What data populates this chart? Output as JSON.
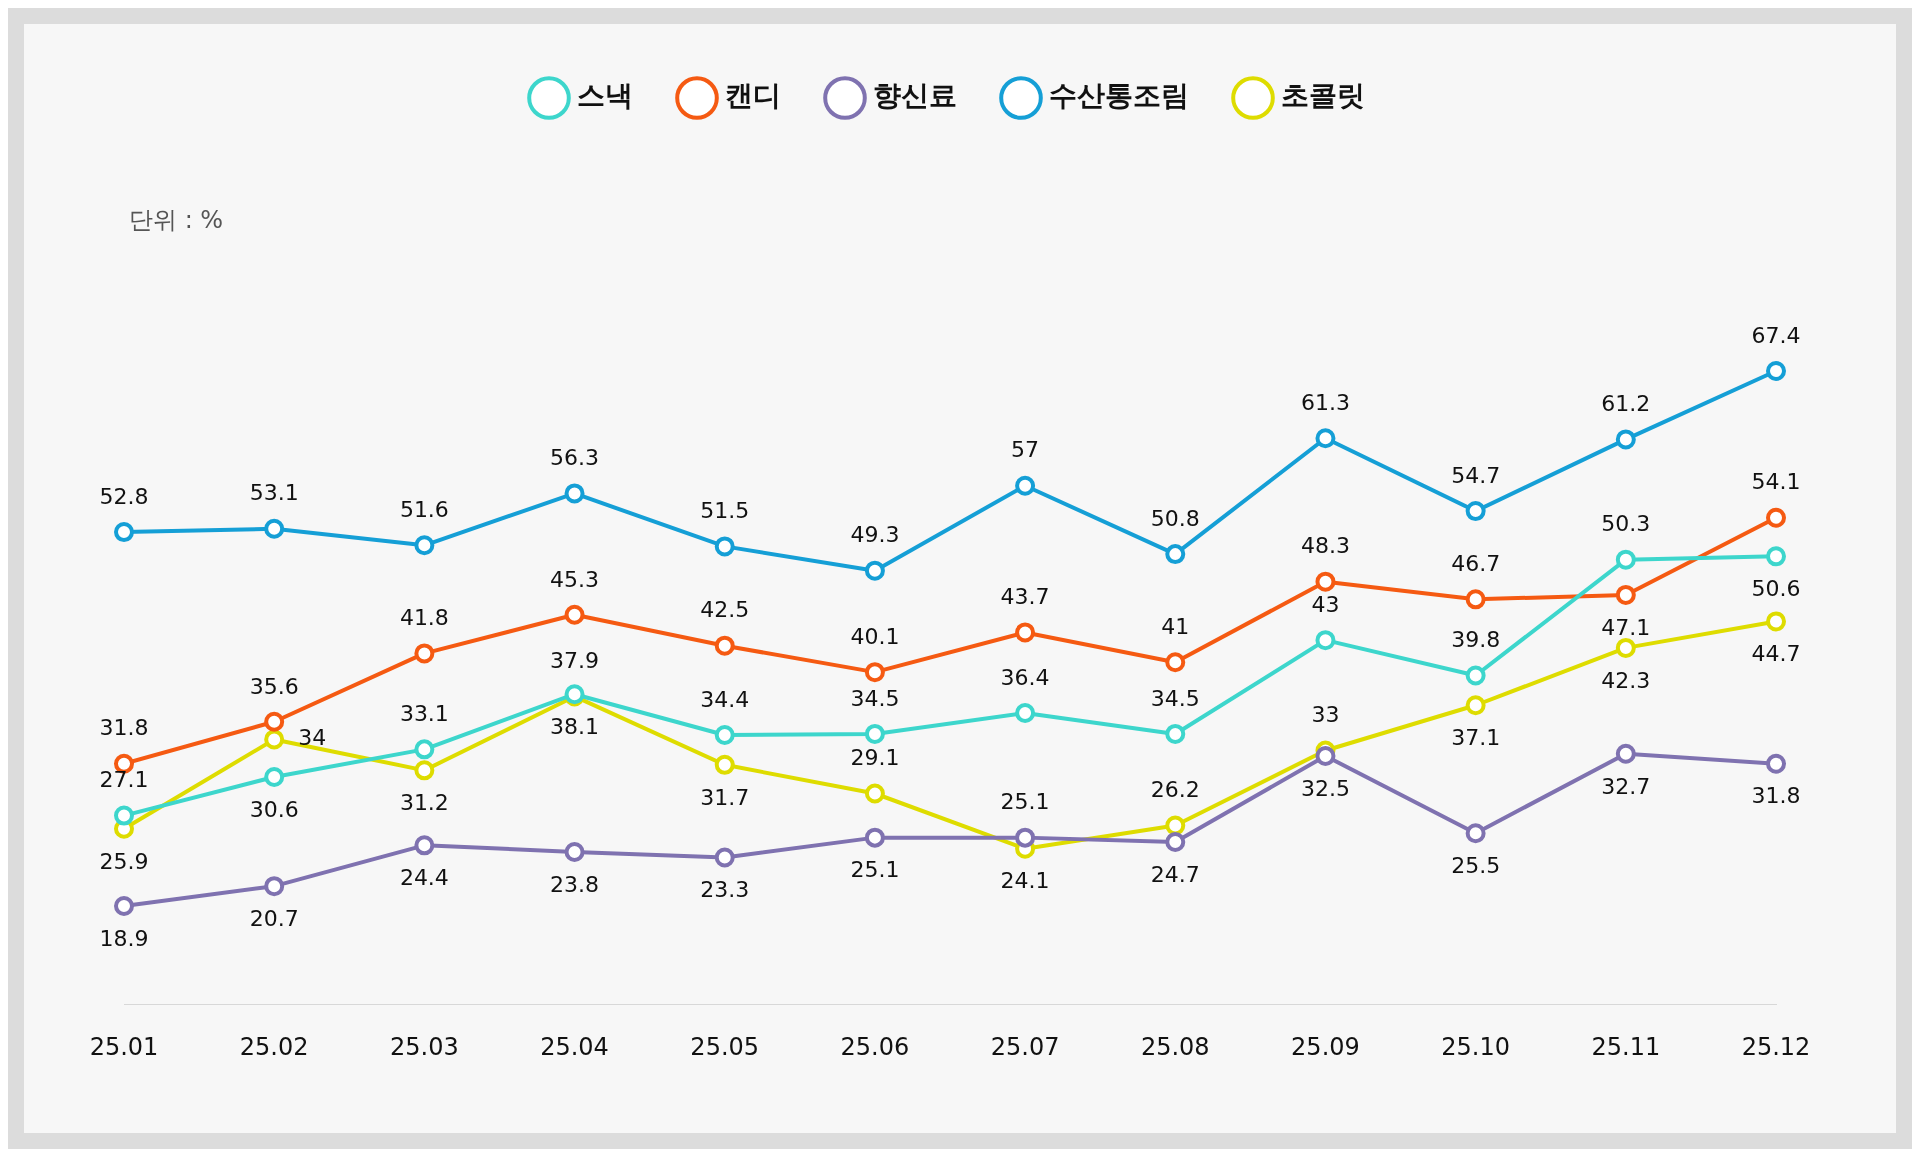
{
  "chart_data": {
    "type": "line",
    "categories": [
      "25.01",
      "25.02",
      "25.03",
      "25.04",
      "25.05",
      "25.06",
      "25.07",
      "25.08",
      "25.09",
      "25.10",
      "25.11",
      "25.12"
    ],
    "series": [
      {
        "name": "스낵",
        "color": "#3dd6cc",
        "values": [
          27.1,
          30.6,
          33.1,
          38.1,
          34.4,
          34.5,
          36.4,
          34.5,
          43,
          39.8,
          50.3,
          50.6
        ]
      },
      {
        "name": "캔디",
        "color": "#f55a12",
        "values": [
          31.8,
          35.6,
          41.8,
          45.3,
          42.5,
          40.1,
          43.7,
          41,
          48.3,
          46.7,
          47.1,
          54.1
        ]
      },
      {
        "name": "향신료",
        "color": "#7f72b0",
        "values": [
          18.9,
          20.7,
          24.4,
          23.8,
          23.3,
          25.1,
          25.1,
          24.7,
          32.5,
          25.5,
          32.7,
          31.8
        ]
      },
      {
        "name": "수산통조림",
        "color": "#159fd6",
        "values": [
          52.8,
          53.1,
          51.6,
          56.3,
          51.5,
          49.3,
          57,
          50.8,
          61.3,
          54.7,
          61.2,
          67.4
        ]
      },
      {
        "name": "초콜릿",
        "color": "#dedc00",
        "values": [
          25.9,
          34,
          31.2,
          37.9,
          31.7,
          29.1,
          24.1,
          26.2,
          33,
          37.1,
          42.3,
          44.7
        ]
      }
    ],
    "annotations": [
      "단위 : %"
    ],
    "data_labels": true,
    "legend": "top",
    "grid": false,
    "marker": "circle",
    "line_style": "solid"
  }
}
